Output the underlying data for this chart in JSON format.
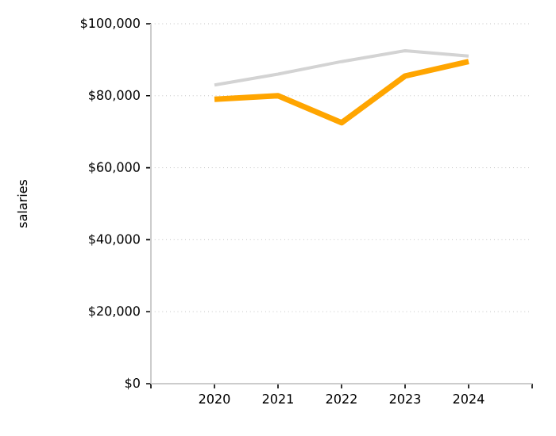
{
  "chart_data": {
    "type": "line",
    "ylabel": "salaries",
    "x": [
      2020,
      2021,
      2022,
      2023,
      2024
    ],
    "series": [
      {
        "color": "#d3d3d3",
        "values": [
          83000,
          86000,
          89500,
          92500,
          91000
        ]
      },
      {
        "color": "#ffa500",
        "values": [
          79000,
          80000,
          72500,
          85500,
          89500
        ]
      }
    ],
    "xlim": [
      2019,
      2025
    ],
    "xticks": [
      {
        "value": 2019,
        "label": null
      },
      2020,
      2021,
      2022,
      2023,
      2024,
      {
        "value": 2025,
        "label": null
      }
    ],
    "ylim": [
      0,
      100000
    ],
    "yticks": [
      {
        "value": 0,
        "label": "$0"
      },
      {
        "value": 20000,
        "label": "$20,000"
      },
      {
        "value": 40000,
        "label": "$40,000"
      },
      {
        "value": 60000,
        "label": "$60,000"
      },
      {
        "value": 80000,
        "label": "$80,000"
      },
      {
        "value": 100000,
        "label": "$100,000"
      }
    ],
    "grid": "y",
    "marker": "none",
    "line_style": "solid"
  }
}
